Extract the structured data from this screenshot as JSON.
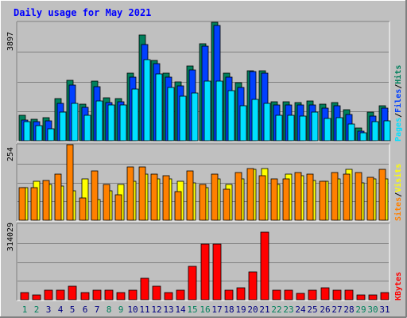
{
  "title": "Daily usage for May 2021",
  "colors": {
    "background": "#c0c0c0",
    "title": "#0000ff",
    "hits": "#00805c",
    "files": "#0040ff",
    "pages": "#00e0ff",
    "visits": "#ffff00",
    "sites": "#ff8000",
    "kbytes": "#ff0000",
    "weekend_label": "#00805c",
    "weekday_label": "#000080"
  },
  "chart_data": [
    {
      "type": "bar",
      "panel": "requests",
      "axis_max_label": "3897",
      "ylim": [
        0,
        3897
      ],
      "legend": [
        "Pages",
        "Files",
        "Hits"
      ],
      "categories": [
        "1",
        "2",
        "3",
        "4",
        "5",
        "6",
        "7",
        "8",
        "9",
        "10",
        "11",
        "12",
        "13",
        "14",
        "15",
        "16",
        "17",
        "18",
        "19",
        "20",
        "21",
        "22",
        "23",
        "24",
        "25",
        "26",
        "27",
        "28",
        "29",
        "30",
        "31"
      ],
      "series": [
        {
          "name": "Hits",
          "values": [
            830,
            700,
            760,
            1380,
            1990,
            1200,
            1950,
            1400,
            1380,
            2220,
            3490,
            2650,
            2230,
            1940,
            2450,
            3200,
            4000,
            2230,
            1900,
            2300,
            2300,
            1280,
            1270,
            1260,
            1310,
            1210,
            1250,
            1010,
            410,
            930,
            1140
          ]
        },
        {
          "name": "Files",
          "values": [
            690,
            620,
            650,
            1230,
            1840,
            1090,
            1790,
            1260,
            1270,
            2090,
            3160,
            2550,
            2100,
            1810,
            2330,
            3100,
            3800,
            2100,
            1750,
            2280,
            2230,
            1190,
            1180,
            1170,
            1190,
            1060,
            1140,
            860,
            320,
            800,
            1060
          ]
        },
        {
          "name": "Pages",
          "values": [
            640,
            510,
            400,
            940,
            1240,
            830,
            1320,
            1170,
            1180,
            1690,
            2670,
            2200,
            1750,
            1460,
            1560,
            1960,
            1960,
            1640,
            1160,
            1360,
            1230,
            850,
            850,
            800,
            930,
            730,
            760,
            540,
            260,
            640,
            660
          ]
        }
      ]
    },
    {
      "type": "bar",
      "panel": "visitors",
      "axis_max_label": "254",
      "ylim": [
        0,
        254
      ],
      "legend": [
        "Sites",
        "Visits"
      ],
      "categories": [
        "1",
        "2",
        "3",
        "4",
        "5",
        "6",
        "7",
        "8",
        "9",
        "10",
        "11",
        "12",
        "13",
        "14",
        "15",
        "16",
        "17",
        "18",
        "19",
        "20",
        "21",
        "22",
        "23",
        "24",
        "25",
        "26",
        "27",
        "28",
        "29",
        "30",
        "31"
      ],
      "series": [
        {
          "name": "Visits",
          "values": [
            110,
            130,
            120,
            115,
            100,
            140,
            70,
            100,
            120,
            130,
            155,
            140,
            140,
            130,
            125,
            110,
            140,
            120,
            140,
            170,
            175,
            120,
            155,
            150,
            135,
            130,
            140,
            170,
            125,
            140,
            140
          ]
        },
        {
          "name": "Sites",
          "values": [
            110,
            110,
            135,
            155,
            254,
            75,
            165,
            120,
            85,
            180,
            180,
            155,
            150,
            95,
            165,
            120,
            155,
            105,
            160,
            175,
            150,
            140,
            140,
            160,
            155,
            130,
            160,
            155,
            160,
            145,
            170
          ]
        }
      ]
    },
    {
      "type": "bar",
      "panel": "traffic",
      "axis_max_label": "314029",
      "ylim": [
        0,
        314029
      ],
      "legend": [
        "KBytes"
      ],
      "categories": [
        "1",
        "2",
        "3",
        "4",
        "5",
        "6",
        "7",
        "8",
        "9",
        "10",
        "11",
        "12",
        "13",
        "14",
        "15",
        "16",
        "17",
        "18",
        "19",
        "20",
        "21",
        "22",
        "23",
        "24",
        "25",
        "26",
        "27",
        "28",
        "29",
        "30",
        "31"
      ],
      "series": [
        {
          "name": "KBytes",
          "values": [
            30000,
            20000,
            40000,
            40000,
            55000,
            30000,
            40000,
            40000,
            30000,
            40000,
            90000,
            55000,
            30000,
            40000,
            140000,
            230000,
            230000,
            40000,
            50000,
            115000,
            280000,
            40000,
            40000,
            25000,
            40000,
            50000,
            40000,
            40000,
            20000,
            20000,
            30000
          ]
        }
      ]
    }
  ]
}
